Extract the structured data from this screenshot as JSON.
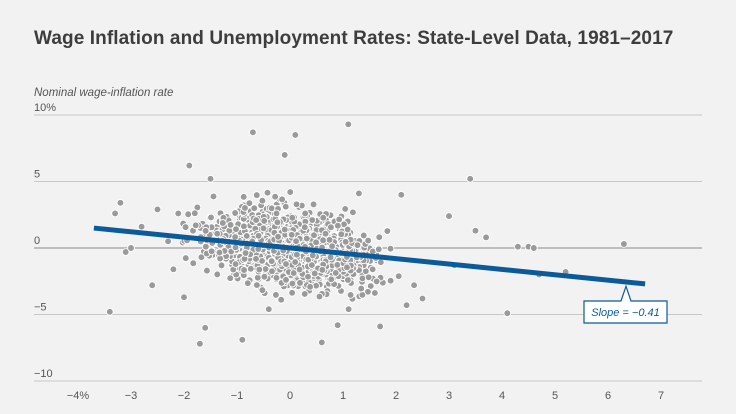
{
  "chart_data": {
    "type": "scatter",
    "title": "Wage Inflation and Unemployment Rates: State-Level Data, 1981–2017",
    "ylabel": "Nominal wage-inflation rate",
    "xlim": [
      -4.5,
      7.5
    ],
    "ylim": [
      -10,
      10
    ],
    "x_ticks": [
      {
        "value": -4,
        "label": "−4%"
      },
      {
        "value": -3,
        "label": "−3"
      },
      {
        "value": -2,
        "label": "−2"
      },
      {
        "value": -1,
        "label": "−1"
      },
      {
        "value": 0,
        "label": "0"
      },
      {
        "value": 1,
        "label": "1"
      },
      {
        "value": 2,
        "label": "2"
      },
      {
        "value": 3,
        "label": "3"
      },
      {
        "value": 4,
        "label": "4"
      },
      {
        "value": 5,
        "label": "5"
      },
      {
        "value": 6,
        "label": "6"
      },
      {
        "value": 7,
        "label": "7"
      }
    ],
    "y_ticks": [
      {
        "value": 10,
        "label": "10%"
      },
      {
        "value": 5,
        "label": "5"
      },
      {
        "value": 0,
        "label": "0"
      },
      {
        "value": -5,
        "label": "−5"
      },
      {
        "value": -10,
        "label": "−10"
      }
    ],
    "grid": "horizontal",
    "zero_line": true,
    "fit_line": {
      "x": [
        -3.7,
        6.7
      ],
      "y": [
        1.5,
        -2.7
      ],
      "slope": -0.41,
      "label": "Slope = −0.41"
    },
    "series": [
      {
        "color": "#9a9a9a",
        "points": [
          [
            -3.4,
            -4.8
          ],
          [
            -3.2,
            3.4
          ],
          [
            -3.1,
            -0.3
          ],
          [
            -3.0,
            0.0
          ],
          [
            -2.6,
            -2.8
          ],
          [
            -2.3,
            0.5
          ],
          [
            -2.2,
            -1.6
          ],
          [
            -2.0,
            -3.7
          ],
          [
            -1.9,
            6.2
          ],
          [
            -1.7,
            -7.2
          ],
          [
            -1.6,
            -6.0
          ],
          [
            -1.5,
            5.2
          ],
          [
            -0.7,
            8.7
          ],
          [
            0.1,
            8.5
          ],
          [
            1.1,
            9.3
          ],
          [
            1.3,
            4.1
          ],
          [
            2.1,
            4.0
          ],
          [
            2.2,
            -4.3
          ],
          [
            2.5,
            -3.8
          ],
          [
            3.0,
            2.4
          ],
          [
            3.1,
            -1.3
          ],
          [
            3.4,
            5.2
          ],
          [
            3.5,
            1.3
          ],
          [
            3.7,
            0.8
          ],
          [
            4.1,
            -4.9
          ],
          [
            4.3,
            0.1
          ],
          [
            4.5,
            0.1
          ],
          [
            4.6,
            0.0
          ],
          [
            4.7,
            -2.0
          ],
          [
            5.2,
            -1.8
          ],
          [
            6.3,
            0.3
          ],
          [
            -0.1,
            7.0
          ],
          [
            -0.9,
            -6.9
          ],
          [
            0.6,
            -7.1
          ],
          [
            -0.4,
            -4.6
          ],
          [
            0.9,
            -5.8
          ],
          [
            1.7,
            -5.9
          ],
          [
            -2.5,
            2.9
          ],
          [
            -2.8,
            1.6
          ],
          [
            -3.3,
            2.6
          ]
        ]
      }
    ]
  }
}
